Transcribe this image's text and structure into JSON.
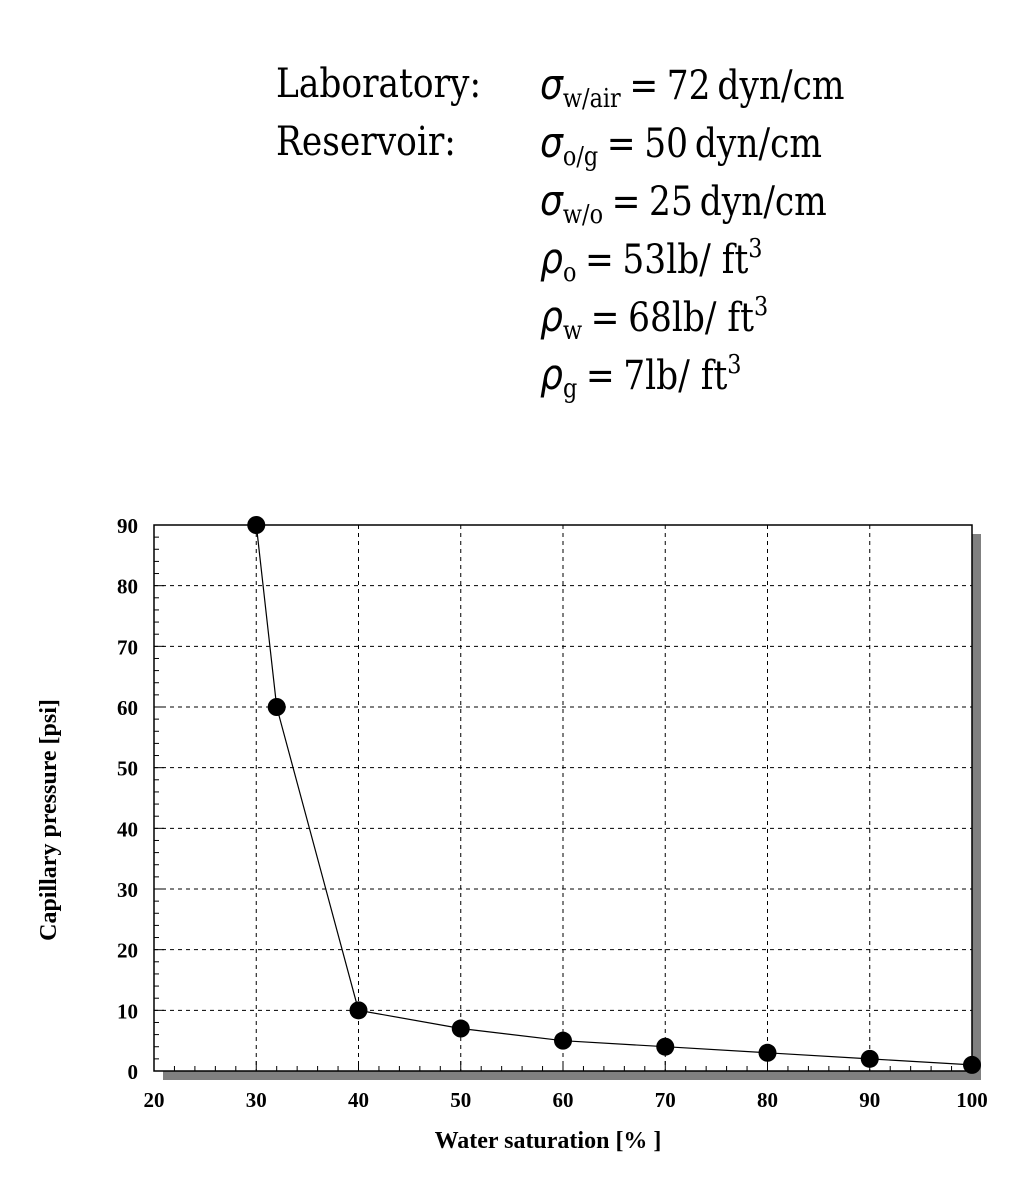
{
  "properties": {
    "laboratory_label": "Laboratory:",
    "reservoir_label": "Reservoir:",
    "rows": [
      {
        "symbol": "σ",
        "subscript": "w/air",
        "value": "72",
        "unit": "dyn/cm",
        "sup": ""
      },
      {
        "symbol": "σ",
        "subscript": "o/g",
        "value": "50",
        "unit": "dyn/cm",
        "sup": ""
      },
      {
        "symbol": "σ",
        "subscript": "w/o",
        "value": "25",
        "unit": "dyn/cm",
        "sup": ""
      },
      {
        "symbol": "ρ",
        "subscript": "o",
        "value": "53",
        "unit": "lb/ ft",
        "sup": "3"
      },
      {
        "symbol": "ρ",
        "subscript": "w",
        "value": "68",
        "unit": "lb/ ft",
        "sup": "3"
      },
      {
        "symbol": "ρ",
        "subscript": "g",
        "value": "7",
        "unit": "lb/ ft",
        "sup": "3"
      }
    ]
  },
  "chart_data": {
    "type": "line",
    "title": "",
    "xlabel": "Water saturation [% ]",
    "ylabel": "Capillary pressure [psi]",
    "xlim": [
      20,
      100
    ],
    "ylim": [
      0,
      90
    ],
    "xticks": [
      20,
      30,
      40,
      50,
      60,
      70,
      80,
      90,
      100
    ],
    "yticks": [
      0,
      10,
      20,
      30,
      40,
      50,
      60,
      70,
      80,
      90
    ],
    "grid": true,
    "legend": "none",
    "colors": {
      "line": "#000000",
      "marker": "#000000",
      "shadow": "#808080",
      "grid": "#000000"
    },
    "series": [
      {
        "x": [
          30,
          32,
          40,
          50,
          60,
          70,
          80,
          90,
          100
        ],
        "y": [
          90,
          60,
          10,
          7,
          5,
          4,
          3,
          2,
          1
        ]
      }
    ]
  }
}
